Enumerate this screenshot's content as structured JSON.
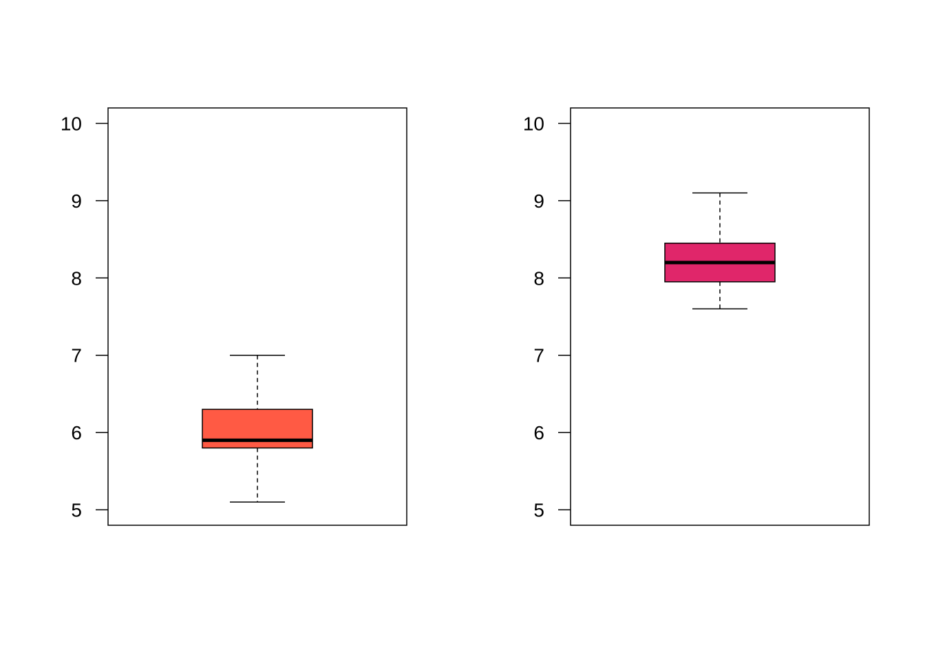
{
  "chart_data": [
    {
      "type": "boxplot",
      "title": "",
      "xlabel": "",
      "ylabel": "",
      "ylim": [
        4.8,
        10.2
      ],
      "yticks": [
        5,
        6,
        7,
        8,
        9,
        10
      ],
      "box": {
        "min": 5.1,
        "q1": 5.8,
        "median": 5.9,
        "q3": 6.3,
        "max": 7.0
      },
      "fill": "#FF5A44"
    },
    {
      "type": "boxplot",
      "title": "",
      "xlabel": "",
      "ylabel": "",
      "ylim": [
        4.8,
        10.2
      ],
      "yticks": [
        5,
        6,
        7,
        8,
        9,
        10
      ],
      "box": {
        "min": 7.6,
        "q1": 7.95,
        "median": 8.2,
        "q3": 8.45,
        "max": 9.1
      },
      "fill": "#E0266A"
    }
  ]
}
